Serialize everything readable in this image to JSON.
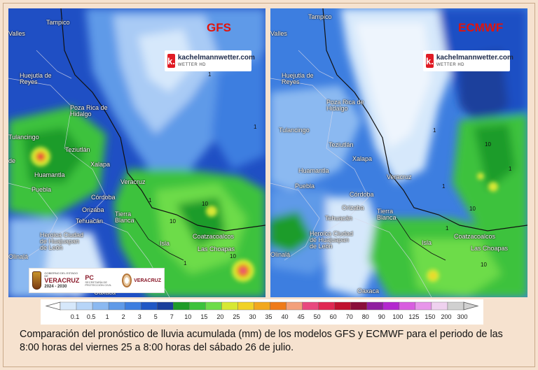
{
  "maps": {
    "gfs": {
      "title": "GFS",
      "cities": [
        "Tampico",
        "Valles",
        "Huejutla de Reyes",
        "Poza Rica de Hidalgo",
        "Tulancingo",
        "Teziutlán",
        "Huamantla",
        "Xalapa",
        "Puebla",
        "Veracruz",
        "Córdoba",
        "Orizaba",
        "Tehuacán",
        "Tierra Blanca",
        "Heroica Ciudad de Huajuapan de León",
        "Isla",
        "Coatzacoalcos",
        "Las Choapas",
        "Olinalá",
        "Oaxaca",
        "de"
      ],
      "contours": [
        "1",
        "1",
        "10",
        "1",
        "1",
        "10",
        "10"
      ]
    },
    "ecmwf": {
      "title": "ECMWF",
      "cities": [
        "Tampico",
        "Valles",
        "Huejutla de Reyes",
        "Poza Rica de Hidalgo",
        "Tulancingo",
        "Teziutlán",
        "Huamantla",
        "Xalapa",
        "Puebla",
        "Veracruz",
        "Córdoba",
        "Orizaba",
        "Tehuacán",
        "Tierra Blanca",
        "Heroica Ciudad de Huajuapan de León",
        "Isla",
        "Coatzacoalcos",
        "Las Choapas",
        "Olinalá",
        "Oaxaca"
      ],
      "contours": [
        "1",
        "1",
        "10",
        "10",
        "10",
        "1",
        "1"
      ]
    }
  },
  "logo": {
    "main": "kachelmannwetter.com",
    "sub": "WETTER HD",
    "k": "k."
  },
  "gov": {
    "small": "GOBIERNO DEL ESTADO DE",
    "state": "VERACRUZ",
    "years": "2024 - 2030",
    "pc": "PC",
    "pc_sub": "SECRETARÍA DE PROTECCIÓN CIVIL",
    "state2": "VERACRUZ"
  },
  "legend": {
    "values": [
      "0.1",
      "0.5",
      "1",
      "2",
      "3",
      "5",
      "7",
      "10",
      "15",
      "20",
      "25",
      "30",
      "35",
      "40",
      "45",
      "50",
      "60",
      "70",
      "80",
      "90",
      "100",
      "125",
      "150",
      "200",
      "300"
    ],
    "colors": [
      "#d6e8fb",
      "#b7d5f8",
      "#8bb9f1",
      "#5f9ae8",
      "#3d7ee0",
      "#2057c5",
      "#1a3f9c",
      "#1e9c2a",
      "#3cc23c",
      "#6ddc4a",
      "#d7e834",
      "#f1d227",
      "#f2a81e",
      "#ef7b1a",
      "#f3a07b",
      "#e8497f",
      "#e02853",
      "#c01230",
      "#8a0f3a",
      "#8f1fa0",
      "#b328cf",
      "#d85de0",
      "#e796ea",
      "#efd1ef",
      "#d0d0d0"
    ]
  },
  "caption": "Comparación del pronóstico de lluvia acumulada (mm) de los modelos GFS y ECMWF para el periodo de las 8:00 horas del viernes 25 a 8:00 horas del sábado 26 de julio."
}
